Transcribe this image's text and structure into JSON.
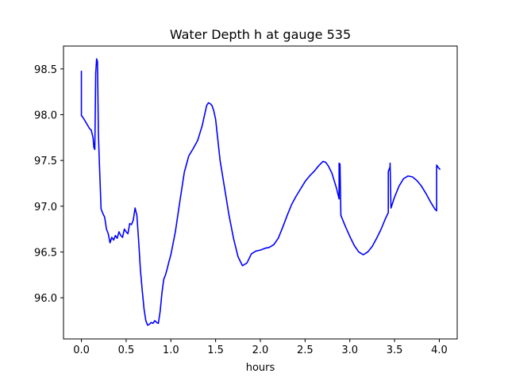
{
  "chart_data": {
    "type": "line",
    "title": "Water Depth h at gauge 535",
    "xlabel": "hours",
    "ylabel": "",
    "xlim": [
      -0.2,
      4.2
    ],
    "ylim": [
      95.55,
      98.75
    ],
    "xticks": [
      0.0,
      0.5,
      1.0,
      1.5,
      2.0,
      2.5,
      3.0,
      3.5,
      4.0
    ],
    "xtick_labels": [
      "0.0",
      "0.5",
      "1.0",
      "1.5",
      "2.0",
      "2.5",
      "3.0",
      "3.5",
      "4.0"
    ],
    "yticks": [
      96.0,
      96.5,
      97.0,
      97.5,
      98.0,
      98.5
    ],
    "ytick_labels": [
      "96.0",
      "96.5",
      "97.0",
      "97.5",
      "98.0",
      "98.5"
    ],
    "grid": false,
    "legend": "none",
    "line_color": "#0000ff",
    "series": [
      {
        "x": [
          0.0,
          0.0,
          0.01,
          0.03,
          0.06,
          0.09,
          0.11,
          0.13,
          0.14,
          0.15,
          0.16,
          0.17,
          0.18,
          0.19,
          0.2,
          0.22,
          0.24,
          0.26,
          0.28,
          0.3,
          0.32,
          0.34,
          0.36,
          0.38,
          0.4,
          0.42,
          0.44,
          0.46,
          0.48,
          0.5,
          0.52,
          0.54,
          0.56,
          0.58,
          0.6,
          0.62,
          0.64,
          0.65,
          0.66,
          0.68,
          0.7,
          0.72,
          0.74,
          0.76,
          0.78,
          0.8,
          0.82,
          0.84,
          0.86,
          0.88,
          0.9,
          0.92,
          0.94,
          0.96,
          0.98,
          1.0,
          1.05,
          1.1,
          1.15,
          1.2,
          1.25,
          1.3,
          1.35,
          1.4,
          1.42,
          1.44,
          1.46,
          1.48,
          1.5,
          1.55,
          1.6,
          1.65,
          1.7,
          1.75,
          1.8,
          1.85,
          1.9,
          1.95,
          2.0,
          2.05,
          2.1,
          2.15,
          2.2,
          2.25,
          2.3,
          2.35,
          2.4,
          2.45,
          2.5,
          2.55,
          2.6,
          2.65,
          2.7,
          2.73,
          2.76,
          2.8,
          2.85,
          2.88,
          2.88,
          2.89,
          2.9,
          2.95,
          3.0,
          3.05,
          3.1,
          3.15,
          3.2,
          3.25,
          3.3,
          3.35,
          3.4,
          3.43,
          3.43,
          3.45,
          3.45,
          3.46,
          3.5,
          3.55,
          3.6,
          3.65,
          3.7,
          3.75,
          3.8,
          3.85,
          3.9,
          3.95,
          3.97,
          3.97,
          3.99,
          4.01
        ],
        "y": [
          98.48,
          97.99,
          97.98,
          97.95,
          97.9,
          97.85,
          97.83,
          97.75,
          97.64,
          97.62,
          98.45,
          98.61,
          98.58,
          97.8,
          97.5,
          96.97,
          96.92,
          96.88,
          96.75,
          96.7,
          96.6,
          96.66,
          96.63,
          96.68,
          96.65,
          96.72,
          96.68,
          96.66,
          96.75,
          96.72,
          96.7,
          96.81,
          96.8,
          96.85,
          96.98,
          96.9,
          96.62,
          96.46,
          96.3,
          96.08,
          95.88,
          95.75,
          95.7,
          95.71,
          95.73,
          95.72,
          95.75,
          95.73,
          95.72,
          95.85,
          96.05,
          96.2,
          96.25,
          96.32,
          96.4,
          96.47,
          96.72,
          97.05,
          97.37,
          97.55,
          97.63,
          97.72,
          97.88,
          98.1,
          98.13,
          98.12,
          98.1,
          98.04,
          97.95,
          97.5,
          97.2,
          96.9,
          96.65,
          96.45,
          96.35,
          96.38,
          96.48,
          96.51,
          96.52,
          96.54,
          96.55,
          96.58,
          96.65,
          96.77,
          96.9,
          97.02,
          97.11,
          97.19,
          97.27,
          97.33,
          97.38,
          97.44,
          97.49,
          97.48,
          97.44,
          97.36,
          97.2,
          97.08,
          97.47,
          97.46,
          96.9,
          96.78,
          96.67,
          96.57,
          96.5,
          96.47,
          96.5,
          96.56,
          96.65,
          96.75,
          96.87,
          96.93,
          97.38,
          97.43,
          97.47,
          96.98,
          97.1,
          97.22,
          97.3,
          97.33,
          97.32,
          97.28,
          97.22,
          97.14,
          97.05,
          96.97,
          96.95,
          97.45,
          97.42,
          97.4
        ]
      }
    ]
  }
}
